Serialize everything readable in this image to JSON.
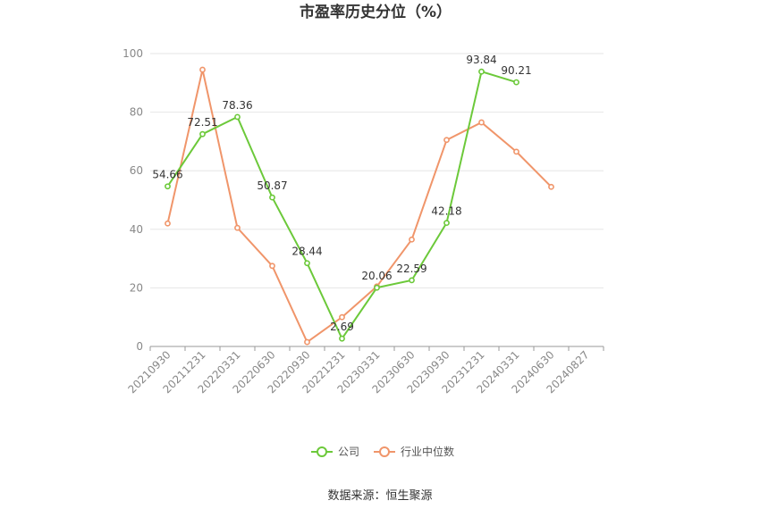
{
  "chart_data": {
    "type": "line",
    "title": "市盈率历史分位（%）",
    "categories": [
      "20210930",
      "20211231",
      "20220331",
      "20220630",
      "20220930",
      "20221231",
      "20230331",
      "20230630",
      "20230930",
      "20231231",
      "20240331",
      "20240630",
      "20240827"
    ],
    "ylim": [
      0,
      100
    ],
    "yticks": [
      0,
      20,
      40,
      60,
      80,
      100
    ],
    "grid": true,
    "legend_position": "bottom",
    "series": [
      {
        "name": "公司",
        "color": "#6cc93a",
        "values": [
          54.66,
          72.51,
          78.36,
          50.87,
          28.44,
          2.69,
          20.06,
          22.59,
          42.18,
          93.84,
          90.21,
          null,
          null
        ],
        "labels": [
          "54.66",
          "72.51",
          "78.36",
          "50.87",
          "28.44",
          "2.69",
          "20.06",
          "22.59",
          "42.18",
          "93.84",
          "90.21",
          null,
          null
        ]
      },
      {
        "name": "行业中位数",
        "color": "#f0956a",
        "values": [
          42,
          94.5,
          40.5,
          27.5,
          1.5,
          10,
          20.5,
          36.5,
          70.5,
          76.5,
          66.5,
          54.5,
          null
        ]
      }
    ],
    "source": "数据来源：恒生聚源"
  }
}
